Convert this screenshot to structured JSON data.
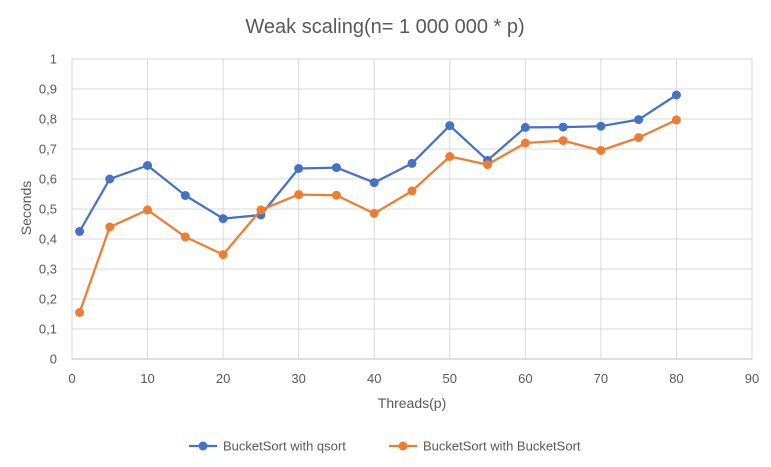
{
  "chart_data": {
    "type": "line",
    "title": "Weak scaling(n= 1 000 000 * p)",
    "xlabel": "Threads(p)",
    "ylabel": "Seconds",
    "xlim": [
      0,
      90
    ],
    "ylim": [
      0,
      1
    ],
    "x_ticks": [
      "0",
      "10",
      "20",
      "30",
      "40",
      "50",
      "60",
      "70",
      "80",
      "90"
    ],
    "y_ticks": [
      "0",
      "0,1",
      "0,2",
      "0,3",
      "0,4",
      "0,5",
      "0,6",
      "0,7",
      "0,8",
      "0,9",
      "1"
    ],
    "grid": true,
    "legend_position": "bottom",
    "x": [
      1,
      5,
      10,
      15,
      20,
      25,
      30,
      35,
      40,
      45,
      50,
      55,
      60,
      65,
      70,
      75,
      80
    ],
    "series": [
      {
        "name": "BucketSort with qsort",
        "color": "#4472C4",
        "values": [
          0.425,
          0.6,
          0.645,
          0.545,
          0.468,
          0.48,
          0.635,
          0.638,
          0.588,
          0.652,
          0.778,
          0.662,
          0.772,
          0.773,
          0.776,
          0.798,
          0.88
        ]
      },
      {
        "name": "BucketSort with BucketSort",
        "color": "#ED7D31",
        "values": [
          0.155,
          0.44,
          0.497,
          0.407,
          0.348,
          0.497,
          0.548,
          0.546,
          0.485,
          0.56,
          0.675,
          0.648,
          0.72,
          0.728,
          0.695,
          0.738,
          0.797
        ]
      }
    ]
  }
}
